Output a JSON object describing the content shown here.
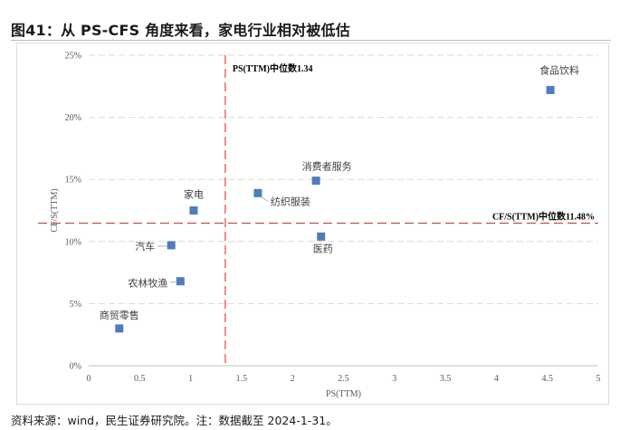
{
  "title": "图41：从 PS-CFS 角度来看，家电行业相对被低估",
  "source": "资料来源：wind，民生证券研究院。注：数据截至 2024-1-31。",
  "chart_data": {
    "type": "scatter",
    "xlabel": "PS(TTM)",
    "ylabel": "CF/S(TTM)",
    "xlim": [
      0,
      5
    ],
    "ylim": [
      0,
      25
    ],
    "x_ticks": [
      "0",
      "0.5",
      "1",
      "1.5",
      "2",
      "2.5",
      "3",
      "3.5",
      "4",
      "4.5",
      "5"
    ],
    "y_ticks": [
      "0%",
      "5%",
      "10%",
      "15%",
      "20%",
      "25%"
    ],
    "grid": true,
    "marker_color": "#4e7dba",
    "reference_color": "#e8534a",
    "points": [
      {
        "label": "食品饮料",
        "x": 4.53,
        "y": 22.2
      },
      {
        "label": "消费者服务",
        "x": 2.23,
        "y": 14.9
      },
      {
        "label": "纺织服装",
        "x": 1.66,
        "y": 13.9
      },
      {
        "label": "家电",
        "x": 1.03,
        "y": 12.5
      },
      {
        "label": "医药",
        "x": 2.28,
        "y": 10.4
      },
      {
        "label": "汽车",
        "x": 0.81,
        "y": 9.7
      },
      {
        "label": "农林牧渔",
        "x": 0.9,
        "y": 6.8
      },
      {
        "label": "商贸零售",
        "x": 0.3,
        "y": 3.0
      }
    ],
    "reference_lines": [
      {
        "axis": "x",
        "value": 1.34,
        "label": "PS(TTM)中位数1.34"
      },
      {
        "axis": "y",
        "value": 11.48,
        "label": "CF/S(TTM)中位数11.48%"
      }
    ]
  }
}
